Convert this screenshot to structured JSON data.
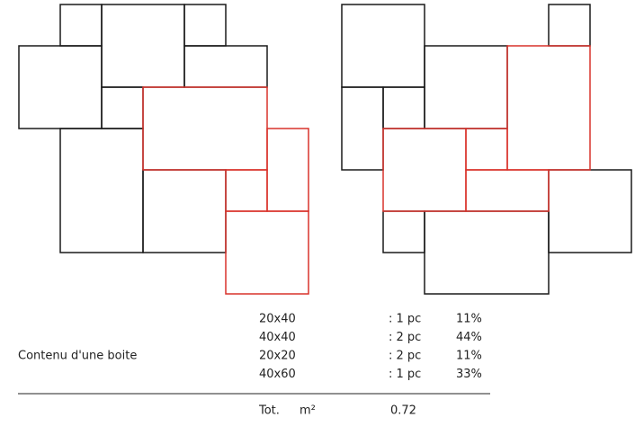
{
  "table": {
    "label": "Contenu d'une boite",
    "rows": [
      [
        "20x40",
        ": 1 pc",
        "11%"
      ],
      [
        "40x40",
        ": 2 pc",
        "44%"
      ],
      [
        "20x20",
        ": 2 pc",
        "11%"
      ],
      [
        "40x60",
        ": 1 pc",
        "33%"
      ]
    ]
  },
  "total": {
    "label": "Tot.",
    "unit": "m²",
    "value": 0.72
  }
}
